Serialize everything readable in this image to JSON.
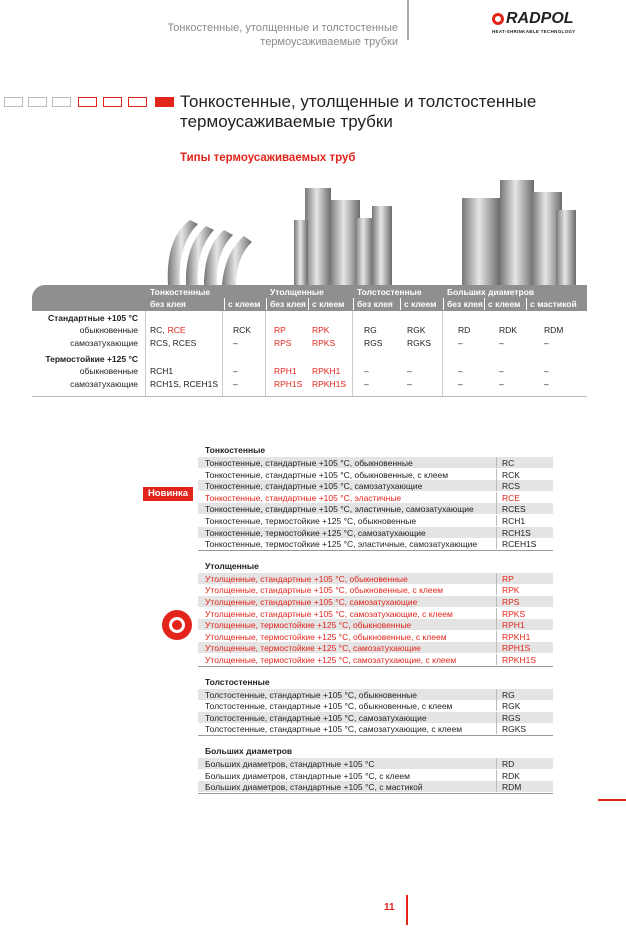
{
  "header": {
    "lines": [
      "Тонкостенные, утолщенные и толстостенные",
      "термоусаживаемые трубки"
    ],
    "logo": "RADPOL",
    "logo_tagline": "HEAT-SHRINKABLE TECHNOLOGY"
  },
  "title": [
    "Тонкостенные, утолщенные и толстостенные",
    "термоусаживаемые трубки"
  ],
  "subtitle": "Типы термоусаживаемых труб",
  "types_table": {
    "column_groups": [
      {
        "title": "Тонкостенные",
        "columns": [
          "без клея",
          "с клеем"
        ]
      },
      {
        "title": "Утолщенные",
        "columns": [
          "без клея",
          "с клеем"
        ]
      },
      {
        "title": "Толстостенные",
        "columns": [
          "без клея",
          "с клеем"
        ]
      },
      {
        "title": "Больших диаметров",
        "columns": [
          "без клея",
          "с клеем",
          "с мастикой"
        ]
      }
    ],
    "row_groups": [
      {
        "title": "Стандартные +105 °С",
        "rows": [
          {
            "label": "обыкновенные",
            "cells": [
              [
                {
                  "text": "RC,"
                },
                {
                  "text": "RCE",
                  "color": "#e3241b"
                }
              ],
              [
                {
                  "text": "RCK"
                }
              ],
              [
                {
                  "text": "RP",
                  "color": "#e3241b"
                }
              ],
              [
                {
                  "text": "RPK",
                  "color": "#e3241b"
                }
              ],
              [
                {
                  "text": "RG"
                }
              ],
              [
                {
                  "text": "RGK"
                }
              ],
              [
                {
                  "text": "RD"
                }
              ],
              [
                {
                  "text": "RDK"
                }
              ],
              [
                {
                  "text": "RDM"
                }
              ]
            ]
          },
          {
            "label": "самозатухающие",
            "cells": [
              [
                {
                  "text": "RCS, RCES"
                }
              ],
              [
                {
                  "text": "–"
                }
              ],
              [
                {
                  "text": "RPS",
                  "color": "#e3241b"
                }
              ],
              [
                {
                  "text": "RPKS",
                  "color": "#e3241b"
                }
              ],
              [
                {
                  "text": "RGS"
                }
              ],
              [
                {
                  "text": "RGKS"
                }
              ],
              [
                {
                  "text": "–"
                }
              ],
              [
                {
                  "text": "–"
                }
              ],
              [
                {
                  "text": "–"
                }
              ]
            ]
          }
        ]
      },
      {
        "title": "Термостойкие +125 °С",
        "rows": [
          {
            "label": "обыкновенные",
            "cells": [
              [
                {
                  "text": "RCH1"
                }
              ],
              [
                {
                  "text": "–"
                }
              ],
              [
                {
                  "text": "RPH1",
                  "color": "#e3241b"
                }
              ],
              [
                {
                  "text": "RPKH1",
                  "color": "#e3241b"
                }
              ],
              [
                {
                  "text": "–"
                }
              ],
              [
                {
                  "text": "–"
                }
              ],
              [
                {
                  "text": "–"
                }
              ],
              [
                {
                  "text": "–"
                }
              ],
              [
                {
                  "text": "–"
                }
              ]
            ]
          },
          {
            "label": "самозатухающие",
            "cells": [
              [
                {
                  "text": "RCH1S, RCEH1S"
                }
              ],
              [
                {
                  "text": "–"
                }
              ],
              [
                {
                  "text": "RPH1S",
                  "color": "#e3241b"
                }
              ],
              [
                {
                  "text": "RPKH1S",
                  "color": "#e3241b"
                }
              ],
              [
                {
                  "text": "–"
                }
              ],
              [
                {
                  "text": "–"
                }
              ],
              [
                {
                  "text": "–"
                }
              ],
              [
                {
                  "text": "–"
                }
              ],
              [
                {
                  "text": "–"
                }
              ]
            ]
          }
        ]
      }
    ]
  },
  "new_badge": "Новинка",
  "product_list": {
    "sections": [
      {
        "title": "Тонкостенные",
        "rows": [
          {
            "name": "Тонкостенные, стандартные +105 °С, обыкновенные",
            "code": "RC"
          },
          {
            "name": "Тонкостенные, стандартные +105 °С, обыкновенные, с клеем",
            "code": "RCK"
          },
          {
            "name": "Тонкостенные, стандартные +105 °С, самозатухающие",
            "code": "RCS"
          },
          {
            "name": "Тонкостенные, стандартные +105 °С, эластичные",
            "code": "RCE",
            "color": "#e3241b"
          },
          {
            "name": "Тонкостенные, стандартные +105 °С, эластичные, самозатухающие",
            "code": "RCES"
          },
          {
            "name": "Тонкостенные, термостойкие +125 °С, обыкновенные",
            "code": "RCH1"
          },
          {
            "name": "Тонкостенные, термостойкие +125 °С, самозатухающие",
            "code": "RCH1S"
          },
          {
            "name": "Тонкостенные, термостойкие +125 °С, эластичные, самозатухающие",
            "code": "RCEH1S"
          }
        ]
      },
      {
        "title": "Утолщенные",
        "rows": [
          {
            "name": "Утолщенные, стандартные +105 °С, обыкновенные",
            "code": "RP",
            "color": "#e3241b"
          },
          {
            "name": "Утолщенные, стандартные +105 °С, обыкновенные, с клеем",
            "code": "RPK",
            "color": "#e3241b"
          },
          {
            "name": "Утолщенные, стандартные +105 °С, самозатухающие",
            "code": "RPS",
            "color": "#e3241b"
          },
          {
            "name": "Утолщенные, стандартные +105 °С, самозатухающие, с клеем",
            "code": "RPKS",
            "color": "#e3241b"
          },
          {
            "name": "Утолщенные, термостойкие +125 °С, обыкновенные",
            "code": "RPH1",
            "color": "#e3241b"
          },
          {
            "name": "Утолщенные, термостойкие +125 °С, обыкновенные, с клеем",
            "code": "RPKH1",
            "color": "#e3241b"
          },
          {
            "name": "Утолщенные, термостойкие +125 °С, самозатухающие",
            "code": "RPH1S",
            "color": "#e3241b"
          },
          {
            "name": "Утолщенные, термостойкие +125 °С, самозатухающие, с клеем",
            "code": "RPKH1S",
            "color": "#e3241b"
          }
        ]
      },
      {
        "title": "Толстостенные",
        "rows": [
          {
            "name": "Толстостенные, стандартные +105 °С, обыкновенные",
            "code": "RG"
          },
          {
            "name": "Толстостенные, стандартные +105 °С, обыкновенные, с клеем",
            "code": "RGK"
          },
          {
            "name": "Толстостенные, стандартные +105 °С, самозатухающие",
            "code": "RGS"
          },
          {
            "name": "Толстостенные, стандартные +105 °С, самозатухающие, с клеем",
            "code": "RGKS"
          }
        ]
      },
      {
        "title": "Больших диаметров",
        "rows": [
          {
            "name": "Больших диаметров, стандартные +105 °С",
            "code": "RD"
          },
          {
            "name": "Больших диаметров, стандартные +105 °С, с клеем",
            "code": "RDK"
          },
          {
            "name": "Больших диаметров, стандартные +105 °С, с мастикой",
            "code": "RDM"
          }
        ]
      }
    ]
  },
  "page_number": "11"
}
